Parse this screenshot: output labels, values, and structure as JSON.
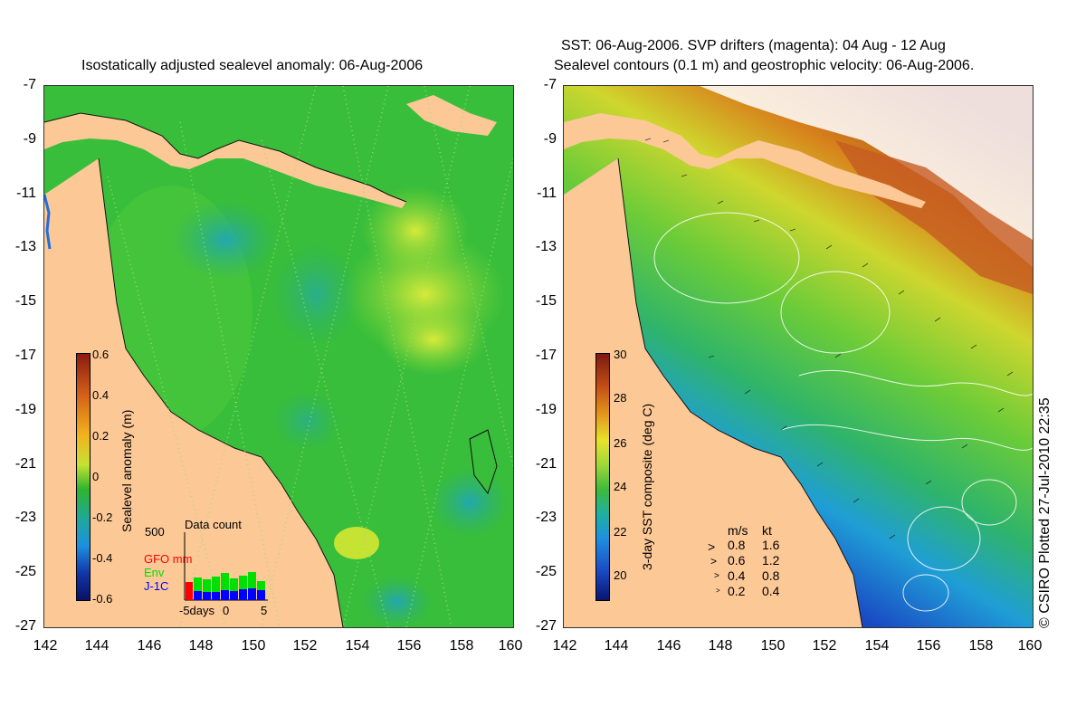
{
  "left_panel": {
    "title": "Isostatically adjusted sealevel anomaly: 06-Aug-2006",
    "colorbar": {
      "label": "Sealevel anomaly (m)",
      "ticks": [
        "0.6",
        "0.4",
        "0.2",
        "0",
        "-0.2",
        "-0.4",
        "-0.6"
      ],
      "colors": [
        "#8b1a10",
        "#d4621a",
        "#f2b31c",
        "#c6e233",
        "#2fb42f",
        "#1fa89a",
        "#1e8fe0",
        "#1236a8",
        "#0a1166"
      ]
    },
    "data_count": {
      "title": "Data count",
      "max_label": "500",
      "legend": [
        {
          "label": "GFO mm",
          "color": "#ff0000"
        },
        {
          "label": "Env",
          "color": "#00e000"
        },
        {
          "label": "J-1C",
          "color": "#0000ff"
        }
      ],
      "xlabel_left": "-5days",
      "xlabel_mid": "0",
      "xlabel_right": "5"
    }
  },
  "right_panel": {
    "title_line1": "SST: 06-Aug-2006. SVP drifters (magenta): 04 Aug - 12 Aug",
    "title_line2": "Sealevel contours (0.1 m) and geostrophic velocity: 06-Aug-2006.",
    "colorbar": {
      "label": "3-day SST composite (deg C)",
      "ticks": [
        "30",
        "28",
        "26",
        "24",
        "22",
        "20"
      ],
      "colors": [
        "#7a1a12",
        "#c24d14",
        "#e39a1d",
        "#e8e22a",
        "#9fd83a",
        "#3dbb3a",
        "#1fb0a0",
        "#1f8fe0",
        "#1a4bc4",
        "#0a1470"
      ]
    },
    "velocity_legend": {
      "header_ms": "m/s",
      "header_kt": "kt",
      "rows": [
        {
          "ms": "0.8",
          "kt": "1.6"
        },
        {
          "ms": "0.6",
          "kt": "1.2"
        },
        {
          "ms": "0.4",
          "kt": "0.8"
        },
        {
          "ms": "0.2",
          "kt": "0.4"
        }
      ]
    },
    "credit": "© CSIRO Plotted 27-Jul-2010 22:35"
  },
  "axes": {
    "y_ticks": [
      "-7",
      "-9",
      "-11",
      "-13",
      "-15",
      "-17",
      "-19",
      "-21",
      "-23",
      "-25",
      "-27"
    ],
    "x_ticks": [
      "142",
      "144",
      "146",
      "148",
      "150",
      "152",
      "154",
      "156",
      "158",
      "160"
    ]
  },
  "colors": {
    "land": "#fcc896",
    "ocean_left": "#3cc23c",
    "ocean_right_warm": "#c9542a",
    "ocean_right_cold": "#0a1a9a"
  }
}
